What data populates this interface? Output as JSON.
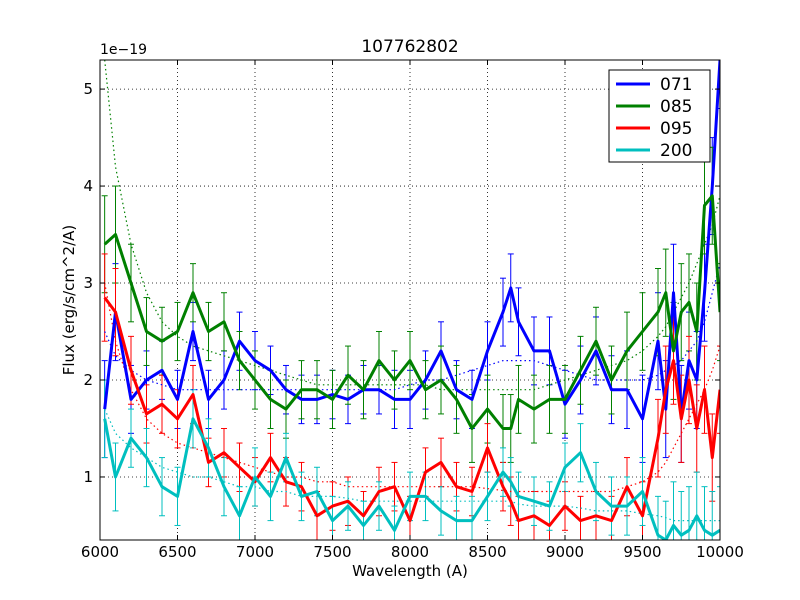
{
  "chart_data": {
    "type": "line",
    "title": "107762802",
    "xlabel": "Wavelength (A)",
    "ylabel": "Flux (erg/s/cm^2/A)",
    "y_offset_label": "1e−19",
    "xlim": [
      6000,
      10000
    ],
    "ylim": [
      0.35,
      5.3
    ],
    "x_ticks": [
      6000,
      6500,
      7000,
      7500,
      8000,
      8500,
      9000,
      9500,
      10000
    ],
    "x_tick_labels": [
      "6000",
      "6500",
      "7000",
      "7500",
      "8000",
      "8500",
      "9000",
      "9500",
      "10000"
    ],
    "y_ticks": [
      1,
      2,
      3,
      4,
      5
    ],
    "y_tick_labels": [
      "1",
      "2",
      "3",
      "4",
      "5"
    ],
    "grid": true,
    "legend_position": "top-right",
    "x": [
      6030,
      6100,
      6200,
      6300,
      6400,
      6500,
      6600,
      6700,
      6800,
      6900,
      7000,
      7100,
      7200,
      7300,
      7400,
      7500,
      7600,
      7700,
      7800,
      7900,
      8000,
      8100,
      8200,
      8300,
      8400,
      8500,
      8600,
      8650,
      8700,
      8800,
      8900,
      9000,
      9100,
      9200,
      9300,
      9400,
      9500,
      9600,
      9650,
      9700,
      9750,
      9800,
      9850,
      9900,
      9950,
      10000
    ],
    "series": [
      {
        "name": "071",
        "color": "#0000ff",
        "values": [
          1.7,
          2.7,
          1.8,
          2.0,
          2.1,
          1.8,
          2.5,
          1.8,
          2.0,
          2.4,
          2.2,
          2.1,
          1.9,
          1.8,
          1.8,
          1.85,
          1.8,
          1.9,
          1.9,
          1.8,
          1.8,
          2.0,
          2.3,
          1.9,
          1.8,
          2.3,
          2.7,
          2.95,
          2.6,
          2.3,
          2.3,
          1.75,
          2.0,
          2.3,
          1.9,
          1.9,
          1.6,
          2.4,
          1.7,
          2.9,
          1.65,
          2.2,
          2.0,
          2.9,
          4.0,
          5.3
        ],
        "errors": [
          0.5,
          0.5,
          0.35,
          0.3,
          0.3,
          0.3,
          0.3,
          0.3,
          0.3,
          0.3,
          0.3,
          0.25,
          0.25,
          0.25,
          0.25,
          0.25,
          0.25,
          0.25,
          0.25,
          0.3,
          0.3,
          0.3,
          0.3,
          0.3,
          0.3,
          0.3,
          0.35,
          0.35,
          0.35,
          0.35,
          0.35,
          0.35,
          0.35,
          0.35,
          0.35,
          0.4,
          0.45,
          0.5,
          0.5,
          0.5,
          0.5,
          0.5,
          0.5,
          0.5,
          0.5,
          0.5
        ],
        "smooth": [
          2.5,
          2.25,
          2.1,
          2.0,
          1.95,
          1.9,
          1.9,
          1.9,
          1.9,
          1.9,
          1.9,
          1.9,
          1.9,
          1.9,
          1.9,
          1.9,
          1.9,
          1.9,
          1.9,
          1.9,
          1.95,
          2.0,
          2.0,
          2.05,
          2.1,
          2.15,
          2.2,
          2.2,
          2.2,
          2.2,
          2.15,
          2.1,
          2.05,
          2.0,
          2.0,
          2.0,
          2.0,
          2.05,
          2.1,
          2.15,
          2.2,
          2.3,
          2.4,
          2.6,
          2.9,
          3.2
        ]
      },
      {
        "name": "085",
        "color": "#008000",
        "values": [
          3.4,
          3.5,
          3.0,
          2.5,
          2.4,
          2.5,
          2.9,
          2.5,
          2.6,
          2.2,
          2.0,
          1.8,
          1.7,
          1.9,
          1.9,
          1.8,
          2.05,
          1.9,
          2.2,
          2.0,
          2.2,
          1.9,
          2.0,
          1.8,
          1.5,
          1.7,
          1.5,
          1.5,
          1.8,
          1.7,
          1.8,
          1.8,
          2.1,
          2.4,
          2.0,
          2.3,
          2.5,
          2.7,
          2.9,
          2.3,
          2.7,
          2.8,
          2.5,
          3.8,
          3.9,
          2.7
        ],
        "errors": [
          0.5,
          0.5,
          0.4,
          0.35,
          0.35,
          0.3,
          0.3,
          0.3,
          0.3,
          0.3,
          0.3,
          0.3,
          0.3,
          0.3,
          0.3,
          0.3,
          0.3,
          0.3,
          0.3,
          0.3,
          0.3,
          0.3,
          0.35,
          0.35,
          0.35,
          0.35,
          0.35,
          0.35,
          0.35,
          0.35,
          0.35,
          0.35,
          0.35,
          0.35,
          0.35,
          0.4,
          0.4,
          0.45,
          0.45,
          0.5,
          0.5,
          0.5,
          0.5,
          0.5,
          0.5,
          0.5
        ],
        "smooth": [
          5.3,
          4.2,
          3.4,
          2.9,
          2.6,
          2.45,
          2.35,
          2.3,
          2.25,
          2.2,
          2.15,
          2.1,
          2.05,
          2.0,
          1.95,
          1.95,
          1.95,
          1.95,
          1.95,
          1.95,
          1.95,
          1.95,
          1.9,
          1.9,
          1.9,
          1.9,
          1.9,
          1.9,
          1.9,
          1.9,
          1.95,
          2.0,
          2.05,
          2.1,
          2.15,
          2.2,
          2.3,
          2.45,
          2.55,
          2.7,
          2.85,
          3.0,
          3.2,
          3.4,
          3.6,
          3.9
        ]
      },
      {
        "name": "095",
        "color": "#ff0000",
        "values": [
          2.85,
          2.7,
          2.1,
          1.65,
          1.75,
          1.6,
          1.85,
          1.15,
          1.25,
          1.1,
          0.95,
          1.2,
          0.95,
          0.9,
          0.6,
          0.7,
          0.75,
          0.6,
          0.85,
          0.9,
          0.55,
          1.05,
          1.15,
          0.9,
          0.85,
          1.3,
          0.9,
          0.75,
          0.55,
          0.6,
          0.5,
          0.7,
          0.55,
          0.6,
          0.55,
          0.9,
          0.6,
          1.4,
          1.9,
          2.2,
          1.6,
          2.0,
          1.5,
          1.9,
          1.2,
          1.9
        ],
        "errors": [
          0.45,
          0.45,
          0.35,
          0.3,
          0.3,
          0.3,
          0.3,
          0.25,
          0.25,
          0.25,
          0.25,
          0.25,
          0.25,
          0.25,
          0.25,
          0.25,
          0.25,
          0.25,
          0.25,
          0.25,
          0.25,
          0.25,
          0.25,
          0.25,
          0.25,
          0.25,
          0.25,
          0.25,
          0.25,
          0.25,
          0.25,
          0.25,
          0.25,
          0.25,
          0.25,
          0.3,
          0.35,
          0.4,
          0.45,
          0.45,
          0.45,
          0.45,
          0.45,
          0.45,
          0.45,
          0.45
        ],
        "smooth": [
          3.0,
          2.4,
          1.9,
          1.6,
          1.45,
          1.35,
          1.3,
          1.25,
          1.2,
          1.15,
          1.1,
          1.05,
          1.0,
          1.0,
          0.95,
          0.95,
          0.9,
          0.9,
          0.9,
          0.9,
          0.9,
          0.9,
          0.9,
          0.9,
          0.9,
          0.88,
          0.86,
          0.85,
          0.85,
          0.85,
          0.85,
          0.85,
          0.85,
          0.85,
          0.85,
          0.9,
          0.95,
          1.05,
          1.15,
          1.3,
          1.45,
          1.6,
          1.75,
          1.9,
          2.1,
          2.35
        ]
      },
      {
        "name": "200",
        "color": "#00bfbf",
        "values": [
          1.6,
          1.0,
          1.4,
          1.2,
          0.9,
          0.8,
          1.6,
          1.3,
          0.9,
          0.6,
          1.0,
          0.8,
          1.2,
          0.8,
          0.85,
          0.55,
          0.7,
          0.5,
          0.7,
          0.45,
          0.8,
          0.8,
          0.65,
          0.55,
          0.55,
          0.8,
          1.05,
          0.95,
          0.8,
          0.75,
          0.7,
          1.1,
          1.25,
          0.85,
          0.7,
          0.7,
          0.85,
          0.4,
          0.35,
          0.5,
          0.4,
          0.45,
          0.6,
          0.45,
          0.4,
          0.45
        ],
        "errors": [
          0.4,
          0.35,
          0.3,
          0.3,
          0.3,
          0.3,
          0.3,
          0.3,
          0.3,
          0.3,
          0.3,
          0.25,
          0.25,
          0.25,
          0.25,
          0.25,
          0.25,
          0.25,
          0.25,
          0.25,
          0.25,
          0.25,
          0.25,
          0.25,
          0.25,
          0.25,
          0.25,
          0.25,
          0.25,
          0.25,
          0.25,
          0.25,
          0.3,
          0.3,
          0.3,
          0.3,
          0.35,
          0.4,
          0.4,
          0.45,
          0.45,
          0.45,
          0.45,
          0.45,
          0.45,
          0.45
        ],
        "smooth": [
          1.7,
          1.45,
          1.3,
          1.2,
          1.1,
          1.05,
          1.0,
          1.0,
          0.95,
          0.9,
          0.9,
          0.85,
          0.85,
          0.8,
          0.8,
          0.8,
          0.78,
          0.75,
          0.75,
          0.75,
          0.75,
          0.75,
          0.75,
          0.75,
          0.75,
          0.75,
          0.75,
          0.75,
          0.72,
          0.7,
          0.7,
          0.7,
          0.68,
          0.65,
          0.65,
          0.65,
          0.62,
          0.6,
          0.58,
          0.55,
          0.55,
          0.55,
          0.55,
          0.55,
          0.55,
          0.55
        ]
      }
    ]
  }
}
